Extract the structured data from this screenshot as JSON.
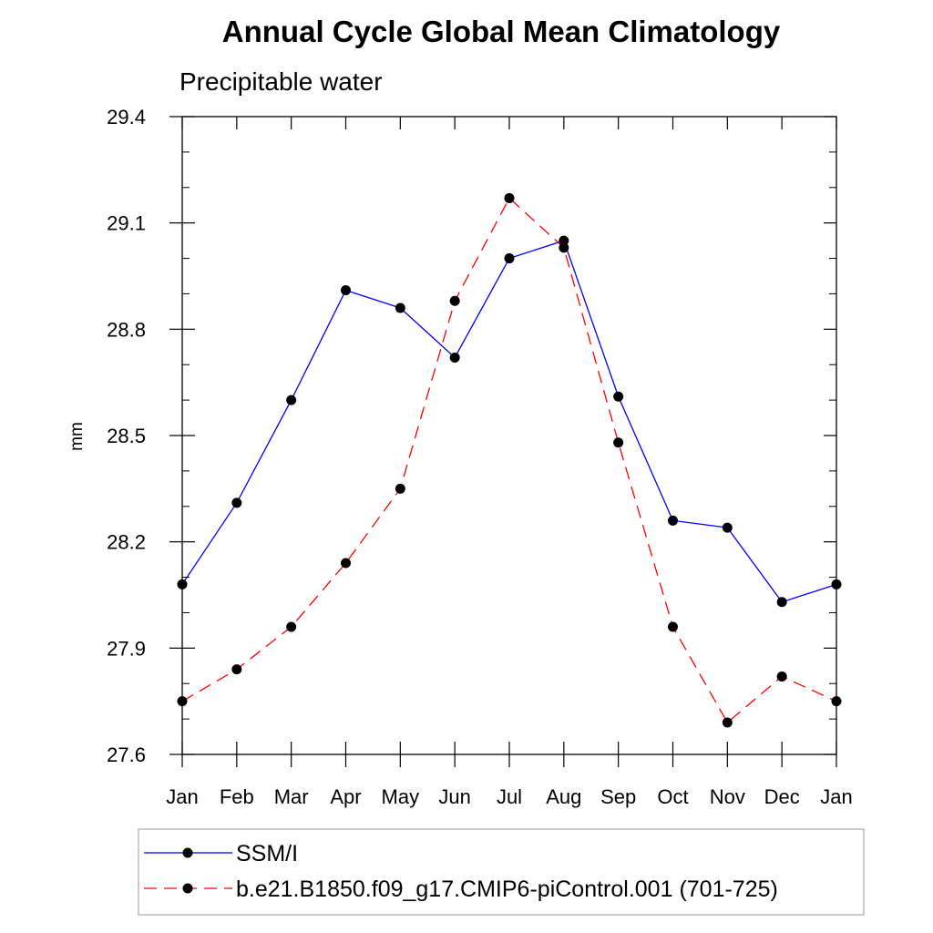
{
  "chart_data": {
    "type": "line",
    "title": "Annual Cycle Global Mean Climatology",
    "subtitle": "Precipitable water",
    "xlabel": "",
    "ylabel": "mm",
    "categories": [
      "Jan",
      "Feb",
      "Mar",
      "Apr",
      "May",
      "Jun",
      "Jul",
      "Aug",
      "Sep",
      "Oct",
      "Nov",
      "Dec",
      "Jan"
    ],
    "yticks": [
      27.6,
      27.9,
      28.2,
      28.5,
      28.8,
      29.1,
      29.4
    ],
    "ytick_labels": [
      "27.6",
      "27.9",
      "28.2",
      "28.5",
      "28.8",
      "29.1",
      "29.4"
    ],
    "ylim": [
      27.6,
      29.4
    ],
    "grid": false,
    "legend_position": "bottom",
    "series": [
      {
        "name": "SSM/I",
        "color": "#0000ff",
        "dash": "solid",
        "values": [
          28.08,
          28.31,
          28.6,
          28.91,
          28.86,
          28.72,
          29.0,
          29.05,
          28.61,
          28.26,
          28.24,
          28.03,
          28.08
        ]
      },
      {
        "name": "b.e21.B1850.f09_g17.CMIP6-piControl.001 (701-725)",
        "color": "#ff0000",
        "dash": "dashed",
        "values": [
          27.75,
          27.84,
          27.96,
          28.14,
          28.35,
          28.88,
          29.17,
          29.03,
          28.48,
          27.96,
          27.69,
          27.82,
          27.75
        ]
      }
    ]
  }
}
